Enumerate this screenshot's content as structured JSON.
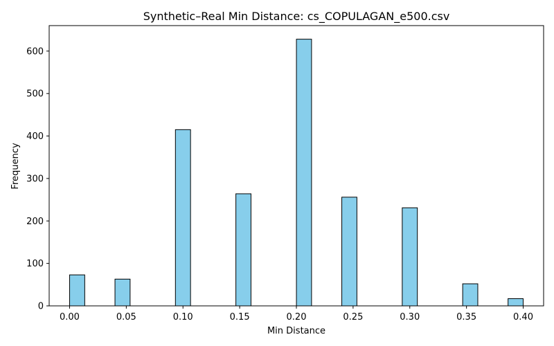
{
  "chart_data": {
    "type": "bar",
    "title": "Synthetic–Real Min Distance: cs_COPULAGAN_e500.csv",
    "xlabel": "Min Distance",
    "ylabel": "Frequency",
    "xlim": [
      -0.018,
      0.418
    ],
    "ylim": [
      0,
      660
    ],
    "bin_width": 0.01333,
    "bars": [
      {
        "x": 0.0067,
        "value": 73
      },
      {
        "x": 0.0467,
        "value": 63
      },
      {
        "x": 0.1,
        "value": 415
      },
      {
        "x": 0.1533,
        "value": 264
      },
      {
        "x": 0.2067,
        "value": 628
      },
      {
        "x": 0.2467,
        "value": 256
      },
      {
        "x": 0.3,
        "value": 231
      },
      {
        "x": 0.3533,
        "value": 52
      },
      {
        "x": 0.3933,
        "value": 17
      }
    ],
    "xticks": [
      0.0,
      0.05,
      0.1,
      0.15,
      0.2,
      0.25,
      0.3,
      0.35,
      0.4
    ],
    "xtick_labels": [
      "0.00",
      "0.05",
      "0.10",
      "0.15",
      "0.20",
      "0.25",
      "0.30",
      "0.35",
      "0.40"
    ],
    "yticks": [
      0,
      100,
      200,
      300,
      400,
      500,
      600
    ],
    "ytick_labels": [
      "0",
      "100",
      "200",
      "300",
      "400",
      "500",
      "600"
    ],
    "grid": false,
    "bar_color": "#87CEEB",
    "edge_color": "#000000"
  }
}
